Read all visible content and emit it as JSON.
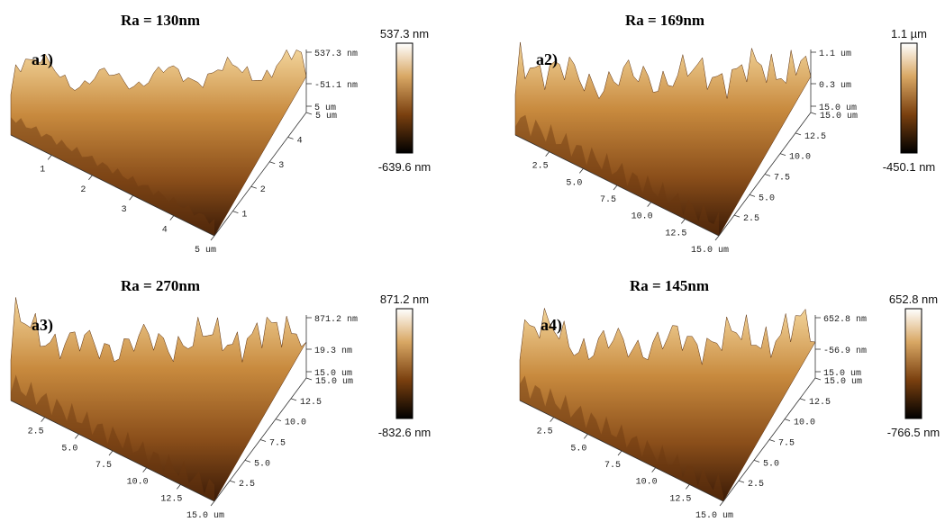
{
  "panels": [
    {
      "label": "a1)",
      "title": "Ra = 130nm",
      "z_labels": [
        "537.3 nm",
        "-51.1 nm",
        "5 um"
      ],
      "x_ticks": [
        "1",
        "2",
        "3",
        "4",
        "5 um"
      ],
      "y_ticks": [
        "1",
        "2",
        "3",
        "4",
        "5 um"
      ],
      "colorbar": {
        "max": "537.3 nm",
        "min": "-639.6 nm"
      }
    },
    {
      "label": "a2)",
      "title": "Ra = 169nm",
      "z_labels": [
        "1.1 um",
        "0.3 um",
        "15.0 um"
      ],
      "x_ticks": [
        "2.5",
        "5.0",
        "7.5",
        "10.0",
        "12.5",
        "15.0 um"
      ],
      "y_ticks": [
        "2.5",
        "5.0",
        "7.5",
        "10.0",
        "12.5",
        "15.0 um"
      ],
      "colorbar": {
        "max": "1.1 µm",
        "min": "-450.1 nm"
      }
    },
    {
      "label": "a3)",
      "title": "Ra = 270nm",
      "z_labels": [
        "871.2 nm",
        "19.3 nm",
        "15.0 um"
      ],
      "x_ticks": [
        "2.5",
        "5.0",
        "7.5",
        "10.0",
        "12.5",
        "15.0 um"
      ],
      "y_ticks": [
        "2.5",
        "5.0",
        "7.5",
        "10.0",
        "12.5",
        "15.0 um"
      ],
      "colorbar": {
        "max": "871.2 nm",
        "min": "-832.6 nm"
      }
    },
    {
      "label": "a4)",
      "title": "Ra = 145nm",
      "z_labels": [
        "652.8 nm",
        "-56.9 nm",
        "15.0 um"
      ],
      "x_ticks": [
        "2.5",
        "5.0",
        "7.5",
        "10.0",
        "12.5",
        "15.0 um"
      ],
      "y_ticks": [
        "2.5",
        "5.0",
        "7.5",
        "10.0",
        "12.5",
        "15.0 um"
      ],
      "colorbar": {
        "max": "652.8 nm",
        "min": "-766.5 nm"
      }
    }
  ]
}
